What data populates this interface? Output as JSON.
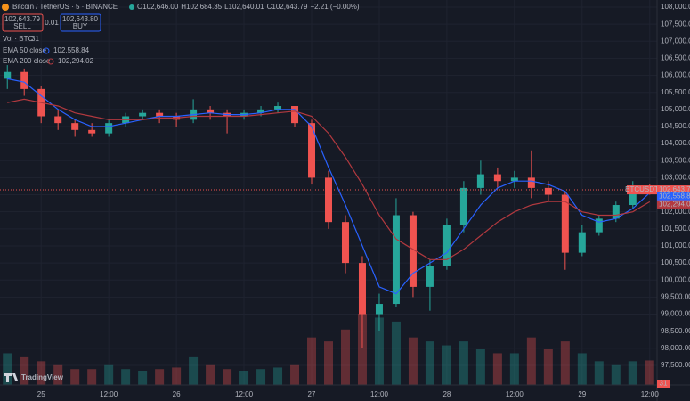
{
  "chart_data": {
    "type": "candlestick",
    "title": "Bitcoin / TetherUS · 5 · BINANCE",
    "ohlc_legend": [
      {
        "label": "O",
        "value": "102,646.00"
      },
      {
        "label": "H",
        "value": "102,684.35"
      },
      {
        "label": "L",
        "value": "102,640.01"
      },
      {
        "label": "C",
        "value": "102,643.79"
      },
      {
        "label": "",
        "value": "−2.21 (−0.00%)"
      }
    ],
    "sell": {
      "price": "102,643.79",
      "label": "SELL"
    },
    "spread": "0.01",
    "buy": {
      "price": "102,643.80",
      "label": "BUY"
    },
    "volume_legend": {
      "label": "Vol · BTC",
      "value": "31"
    },
    "symbol": "BTCUSDT",
    "countdown": "02:50",
    "last_price": 102643.79,
    "last_price_label": "102,643.79",
    "volume_tag": "31",
    "brand": "TradingView",
    "up_color": "#26a69a",
    "down_color": "#ef5350",
    "x": [
      -6,
      -3,
      0,
      3,
      6,
      9,
      12,
      15,
      18,
      21,
      24,
      27,
      30,
      33,
      36,
      39,
      42,
      45,
      48,
      51,
      54,
      57,
      60,
      63,
      66,
      69,
      72,
      75,
      78,
      81,
      84,
      87,
      90,
      93,
      96,
      99,
      102,
      105,
      108
    ],
    "open": [
      105900,
      106100,
      105600,
      104800,
      104600,
      104400,
      104300,
      104600,
      104800,
      104900,
      104800,
      104700,
      105000,
      104900,
      104800,
      104900,
      105000,
      105100,
      104600,
      103000,
      101700,
      100500,
      99000,
      99300,
      101900,
      99800,
      100400,
      101600,
      102700,
      103100,
      102900,
      103000,
      102700,
      102500,
      100800,
      101400,
      101800,
      102200,
      102700
    ],
    "high": [
      106300,
      106200,
      105700,
      105000,
      104700,
      104600,
      104700,
      104900,
      105000,
      105000,
      104900,
      105300,
      105100,
      105000,
      105000,
      105100,
      105200,
      105100,
      104700,
      103200,
      101900,
      100700,
      99600,
      102400,
      102000,
      100600,
      101800,
      102900,
      103500,
      103300,
      103200,
      103800,
      102900,
      102600,
      101600,
      101900,
      102300,
      102900,
      102800
    ],
    "low": [
      105600,
      105400,
      104600,
      104400,
      104200,
      104200,
      104200,
      104500,
      104700,
      104600,
      104500,
      104600,
      104700,
      104300,
      104700,
      104800,
      104900,
      104500,
      102800,
      101500,
      100200,
      98000,
      98500,
      99200,
      99500,
      99100,
      100300,
      101400,
      102500,
      102700,
      102700,
      102400,
      102300,
      100300,
      100700,
      101300,
      101700,
      102100,
      102500
    ],
    "close": [
      106100,
      105600,
      104800,
      104600,
      104400,
      104300,
      104600,
      104800,
      104900,
      104800,
      104700,
      105000,
      104900,
      104800,
      104900,
      105000,
      105100,
      104600,
      103000,
      101700,
      100500,
      99000,
      99300,
      101900,
      99800,
      100400,
      101600,
      102700,
      103100,
      102900,
      103000,
      102700,
      102500,
      100800,
      101400,
      101800,
      102200,
      102700,
      102643.79
    ],
    "volume": [
      40,
      35,
      30,
      25,
      20,
      20,
      25,
      20,
      18,
      20,
      22,
      35,
      25,
      20,
      18,
      20,
      22,
      25,
      60,
      55,
      70,
      90,
      85,
      80,
      60,
      55,
      50,
      55,
      45,
      40,
      40,
      60,
      45,
      55,
      40,
      30,
      25,
      30,
      31
    ],
    "series": [
      {
        "name": "EMA 50 close",
        "color": "#2962ff",
        "last_label": "102,558.84",
        "values": [
          105900,
          105800,
          105400,
          105000,
          104700,
          104500,
          104500,
          104600,
          104700,
          104800,
          104800,
          104850,
          104900,
          104850,
          104850,
          104900,
          105000,
          105000,
          104500,
          103300,
          102200,
          101000,
          99800,
          99600,
          100200,
          100500,
          100800,
          101500,
          102200,
          102700,
          102900,
          102900,
          102800,
          102600,
          101900,
          101700,
          101800,
          102100,
          102558.84
        ]
      },
      {
        "name": "EMA 200 close",
        "color": "#b2393f",
        "last_label": "102,294.02",
        "values": [
          105200,
          105300,
          105200,
          105100,
          104900,
          104800,
          104700,
          104700,
          104700,
          104750,
          104750,
          104800,
          104800,
          104800,
          104800,
          104850,
          104900,
          104950,
          104800,
          104300,
          103600,
          102800,
          101900,
          101200,
          100900,
          100600,
          100600,
          100900,
          101300,
          101700,
          102000,
          102200,
          102300,
          102300,
          102000,
          101900,
          101900,
          102000,
          102294.02
        ]
      }
    ],
    "xlim": [
      -7.3,
      109.3
    ],
    "xticks": [
      {
        "value": 0,
        "label": "25"
      },
      {
        "value": 12,
        "label": "12:00"
      },
      {
        "value": 24,
        "label": "26"
      },
      {
        "value": 36,
        "label": "12:00"
      },
      {
        "value": 48,
        "label": "27"
      },
      {
        "value": 60,
        "label": "12:00"
      },
      {
        "value": 72,
        "label": "28"
      },
      {
        "value": 84,
        "label": "12:00"
      },
      {
        "value": 96,
        "label": "29"
      },
      {
        "value": 108,
        "label": "12:00"
      }
    ],
    "ylim": [
      96924,
      108209
    ],
    "yticks": [
      {
        "value": 108000,
        "label": "108,000.00"
      },
      {
        "value": 107500,
        "label": "107,500.00"
      },
      {
        "value": 107000,
        "label": "107,000.00"
      },
      {
        "value": 106500,
        "label": "106,500.00"
      },
      {
        "value": 106000,
        "label": "106,000.00"
      },
      {
        "value": 105500,
        "label": "105,500.00"
      },
      {
        "value": 105000,
        "label": "105,000.00"
      },
      {
        "value": 104500,
        "label": "104,500.00"
      },
      {
        "value": 104000,
        "label": "104,000.00"
      },
      {
        "value": 103500,
        "label": "103,500.00"
      },
      {
        "value": 103000,
        "label": "103,000.00"
      },
      {
        "value": 102500,
        "label": "102,500.00"
      },
      {
        "value": 102000,
        "label": "102,000.00"
      },
      {
        "value": 101500,
        "label": "101,500.00"
      },
      {
        "value": 101000,
        "label": "101,000.00"
      },
      {
        "value": 100500,
        "label": "100,500.00"
      },
      {
        "value": 100000,
        "label": "100,000.00"
      },
      {
        "value": 99500,
        "label": "99,500.00"
      },
      {
        "value": 99000,
        "label": "99,000.00"
      },
      {
        "value": 98500,
        "label": "98,500.00"
      },
      {
        "value": 98000,
        "label": "98,000.00"
      },
      {
        "value": 97500,
        "label": "97,500.00"
      }
    ],
    "grid": true
  }
}
